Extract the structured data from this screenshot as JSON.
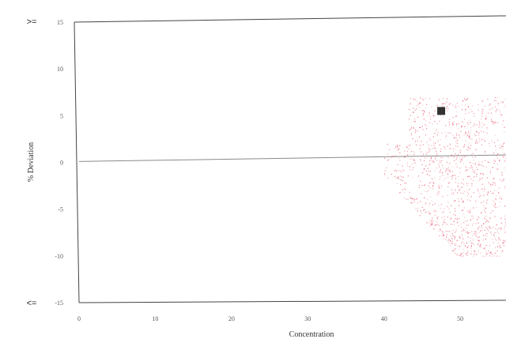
{
  "chart_data": {
    "type": "scatter",
    "xlabel": "Concentration",
    "ylabel": "% Deviation",
    "xlim": [
      0,
      56
    ],
    "ylim": [
      -15,
      15
    ],
    "x_ticks": [
      "0",
      "10",
      "20",
      "30",
      "40",
      "50"
    ],
    "y_ticks": [
      "-15",
      "-10",
      "-5",
      "0",
      "5",
      "10",
      "15"
    ],
    "upper_bound_label": ">=",
    "lower_bound_label": "<=",
    "grid": false,
    "reference_line": {
      "x": [
        0,
        56
      ],
      "y": [
        0.1,
        0.8
      ]
    },
    "highlight_point": {
      "x": 47.5,
      "y": 5.5
    },
    "point_cloud": {
      "description_region": "dense points for x approx 40 to 56, y approx -10 to 7",
      "x_range": [
        40,
        56
      ],
      "y_range": [
        -10,
        7
      ]
    },
    "colors": {
      "points": "#e23b55",
      "highlight": "#333333",
      "axis": "#444444",
      "reference_line": "#8a8a8a"
    }
  }
}
